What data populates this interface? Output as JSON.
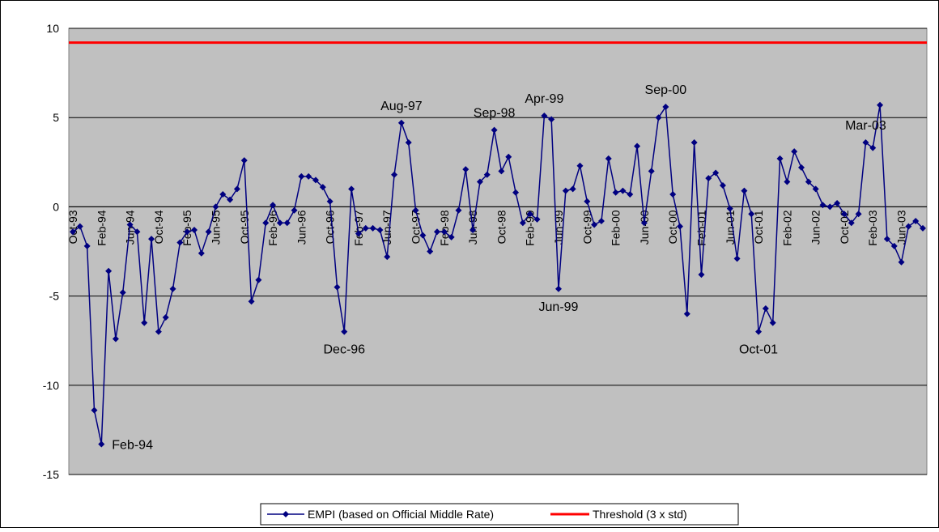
{
  "chart_data": {
    "type": "line",
    "categories": [
      "Oct-93",
      null,
      null,
      null,
      "Feb-94",
      null,
      null,
      null,
      "Jun-94",
      null,
      null,
      null,
      "Oct-94",
      null,
      null,
      null,
      "Feb-95",
      null,
      null,
      null,
      "Jun-95",
      null,
      null,
      null,
      "Oct-95",
      null,
      null,
      null,
      "Feb-96",
      null,
      null,
      null,
      "Jun-96",
      null,
      null,
      null,
      "Oct-96",
      null,
      null,
      null,
      "Feb-97",
      null,
      null,
      null,
      "Jun-97",
      null,
      null,
      null,
      "Oct-97",
      null,
      null,
      null,
      "Feb-98",
      null,
      null,
      null,
      "Jun-98",
      null,
      null,
      null,
      "Oct-98",
      null,
      null,
      null,
      "Feb-99",
      null,
      null,
      null,
      "Jun-99",
      null,
      null,
      null,
      "Oct-99",
      null,
      null,
      null,
      "Feb-00",
      null,
      null,
      null,
      "Jun-00",
      null,
      null,
      null,
      "Oct-00",
      null,
      null,
      null,
      "Feb-01",
      null,
      null,
      null,
      "Jun-01",
      null,
      null,
      null,
      "Oct-01",
      null,
      null,
      null,
      "Feb-02",
      null,
      null,
      null,
      "Jun-02",
      null,
      null,
      null,
      "Oct-02",
      null,
      null,
      null,
      "Feb-03",
      null,
      null,
      null,
      "Jun-03",
      null,
      null,
      null
    ],
    "series": [
      {
        "name": "EMPI (based on Official Middle Rate)",
        "color": "#000080",
        "values": [
          -1.4,
          -1.1,
          -2.2,
          -11.4,
          -13.3,
          -3.6,
          -7.4,
          -4.8,
          -1.0,
          -1.4,
          -6.5,
          -1.8,
          -7.0,
          -6.2,
          -4.6,
          -2.0,
          -1.4,
          -1.3,
          -2.6,
          -1.4,
          0.0,
          0.7,
          0.4,
          1.0,
          2.6,
          -5.3,
          -4.1,
          -0.9,
          0.1,
          -0.9,
          -0.9,
          -0.2,
          1.7,
          1.7,
          1.5,
          1.1,
          0.3,
          -4.5,
          -7.0,
          1.0,
          -1.5,
          -1.2,
          -1.2,
          -1.3,
          -2.8,
          1.8,
          4.7,
          3.6,
          -0.2,
          -1.6,
          -2.5,
          -1.4,
          -1.4,
          -1.7,
          -0.2,
          2.1,
          -1.3,
          1.4,
          1.8,
          4.3,
          2.0,
          2.8,
          0.8,
          -0.9,
          -0.4,
          -0.7,
          5.1,
          4.9,
          -4.6,
          0.9,
          1.0,
          2.3,
          0.3,
          -1.0,
          -0.8,
          2.7,
          0.8,
          0.9,
          0.7,
          3.4,
          -0.9,
          2.0,
          5.0,
          5.6,
          0.7,
          -1.1,
          -6.0,
          3.6,
          -3.8,
          1.6,
          1.9,
          1.2,
          -0.1,
          -2.9,
          0.9,
          -0.4,
          -7.0,
          -5.7,
          -6.5,
          2.7,
          1.4,
          3.1,
          2.2,
          1.4,
          1.0,
          0.1,
          0.0,
          0.2,
          -0.4,
          -0.9,
          -0.4,
          3.6,
          3.3,
          5.7,
          -1.8,
          -2.2,
          -3.1,
          -1.1,
          -0.8,
          -1.2
        ],
        "point_labels": [
          null,
          null,
          null,
          null,
          "Feb-94",
          null,
          null,
          null,
          null,
          null,
          null,
          null,
          null,
          null,
          null,
          null,
          null,
          null,
          null,
          null,
          null,
          null,
          null,
          null,
          null,
          null,
          null,
          null,
          null,
          null,
          null,
          null,
          null,
          null,
          null,
          null,
          null,
          null,
          "Dec-96",
          null,
          null,
          null,
          null,
          null,
          null,
          null,
          "Aug-97",
          null,
          null,
          null,
          null,
          null,
          null,
          null,
          null,
          null,
          null,
          null,
          null,
          "Sep-98",
          null,
          null,
          null,
          null,
          null,
          null,
          "Apr-99",
          null,
          "Jun-99",
          null,
          null,
          null,
          null,
          null,
          null,
          null,
          null,
          null,
          null,
          null,
          null,
          null,
          null,
          "Sep-00",
          null,
          null,
          null,
          null,
          null,
          null,
          null,
          null,
          null,
          null,
          null,
          null,
          "Oct-01",
          null,
          null,
          null,
          null,
          null,
          null,
          null,
          null,
          null,
          null,
          null,
          null,
          null,
          null,
          "Mar-03",
          null,
          null,
          null,
          null,
          null,
          null
        ]
      }
    ],
    "threshold": {
      "name": "Threshold (3 x std)",
      "color": "#ff0000",
      "value": 9.2
    },
    "ylim": [
      -15,
      10
    ],
    "yticks": [
      -15,
      -10,
      -5,
      0,
      5,
      10
    ],
    "grid": true,
    "legend": "bottom"
  }
}
